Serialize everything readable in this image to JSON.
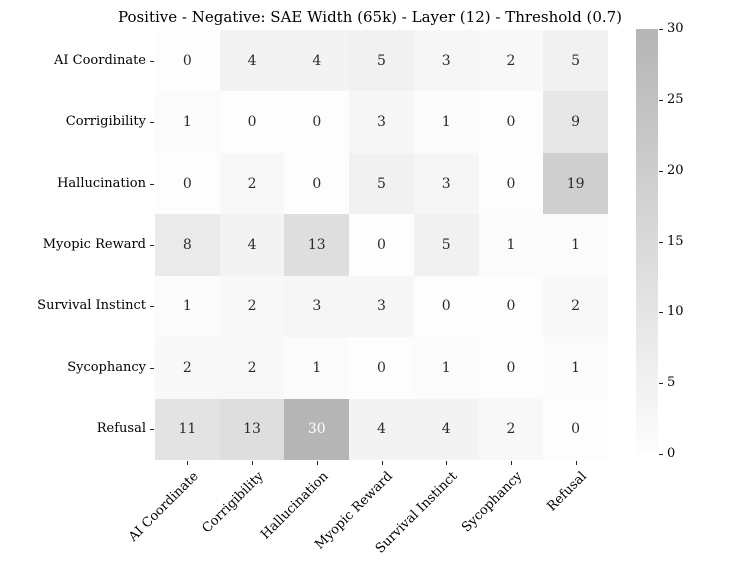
{
  "chart_data": {
    "type": "heatmap",
    "title": "Positive - Negative: SAE Width (65k) - Layer (12) - Threshold (0.7)",
    "x_categories": [
      "AI Coordinate",
      "Corrigibility",
      "Hallucination",
      "Myopic Reward",
      "Survival Instinct",
      "Sycophancy",
      "Refusal"
    ],
    "y_categories": [
      "AI Coordinate",
      "Corrigibility",
      "Hallucination",
      "Myopic Reward",
      "Survival Instinct",
      "Sycophancy",
      "Refusal"
    ],
    "matrix": [
      [
        0,
        4,
        4,
        5,
        3,
        2,
        5
      ],
      [
        1,
        0,
        0,
        3,
        1,
        0,
        9
      ],
      [
        0,
        2,
        0,
        5,
        3,
        0,
        19
      ],
      [
        8,
        4,
        13,
        0,
        5,
        1,
        1
      ],
      [
        1,
        2,
        3,
        3,
        0,
        0,
        2
      ],
      [
        2,
        2,
        1,
        0,
        1,
        0,
        1
      ],
      [
        11,
        13,
        30,
        4,
        4,
        2,
        0
      ]
    ],
    "colorbar": {
      "min": 0,
      "max": 30,
      "ticks": [
        0,
        5,
        10,
        15,
        20,
        25,
        30
      ],
      "position": "right"
    },
    "grid_lines": false,
    "legend": "colorbar-right",
    "colors": {
      "low": "#fdfdfd",
      "high": "#b5b5b5",
      "annotation": "#2b2b2b",
      "annotation_on_dark": "#ffffff",
      "tick": "#262626"
    },
    "annotation_light_threshold": 25
  }
}
